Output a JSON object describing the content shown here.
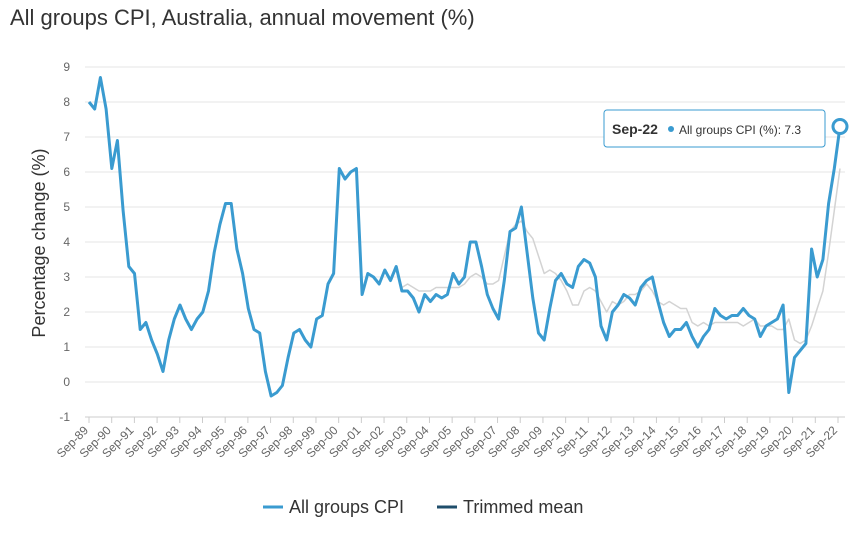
{
  "chart_data": {
    "type": "line",
    "title": "All groups CPI, Australia, annual movement (%)",
    "ylabel": "Percentage change (%)",
    "xlabel": "",
    "ylim": [
      -1,
      9
    ],
    "yticks": [
      -1,
      0,
      1,
      2,
      3,
      4,
      5,
      6,
      7,
      8,
      9
    ],
    "xticks": [
      "Sep-89",
      "Sep-90",
      "Sep-91",
      "Sep-92",
      "Sep-93",
      "Sep-94",
      "Sep-95",
      "Sep-96",
      "Sep-97",
      "Sep-98",
      "Sep-99",
      "Sep-00",
      "Sep-01",
      "Sep-02",
      "Sep-03",
      "Sep-04",
      "Sep-05",
      "Sep-06",
      "Sep-07",
      "Sep-08",
      "Sep-09",
      "Sep-10",
      "Sep-11",
      "Sep-12",
      "Sep-13",
      "Sep-14",
      "Sep-15",
      "Sep-16",
      "Sep-17",
      "Sep-18",
      "Sep-19",
      "Sep-20",
      "Sep-21",
      "Sep-22"
    ],
    "grid": true,
    "legend_position": "bottom",
    "series": [
      {
        "name": "All groups CPI",
        "color": "#3a9bd0",
        "values": [
          8.0,
          7.8,
          8.7,
          7.8,
          6.1,
          6.9,
          4.9,
          3.3,
          3.1,
          1.5,
          1.7,
          1.2,
          0.8,
          0.3,
          1.2,
          1.8,
          2.2,
          1.8,
          1.5,
          1.8,
          2.0,
          2.6,
          3.7,
          4.5,
          5.1,
          5.1,
          3.8,
          3.1,
          2.1,
          1.5,
          1.4,
          0.3,
          -0.4,
          -0.3,
          -0.1,
          0.7,
          1.4,
          1.5,
          1.2,
          1.0,
          1.8,
          1.9,
          2.8,
          3.1,
          6.1,
          5.8,
          6.0,
          6.1,
          2.5,
          3.1,
          3.0,
          2.8,
          3.2,
          2.9,
          3.3,
          2.6,
          2.6,
          2.4,
          2.0,
          2.5,
          2.3,
          2.5,
          2.4,
          2.5,
          3.1,
          2.8,
          3.0,
          4.0,
          4.0,
          3.3,
          2.5,
          2.1,
          1.8,
          2.9,
          4.3,
          4.4,
          5.0,
          3.7,
          2.4,
          1.4,
          1.2,
          2.1,
          2.9,
          3.1,
          2.8,
          2.7,
          3.3,
          3.5,
          3.4,
          3.0,
          1.6,
          1.2,
          2.0,
          2.2,
          2.5,
          2.4,
          2.2,
          2.7,
          2.9,
          3.0,
          2.3,
          1.7,
          1.3,
          1.5,
          1.5,
          1.7,
          1.3,
          1.0,
          1.3,
          1.5,
          2.1,
          1.9,
          1.8,
          1.9,
          1.9,
          2.1,
          1.9,
          1.8,
          1.3,
          1.6,
          1.7,
          1.8,
          2.2,
          -0.3,
          0.7,
          0.9,
          1.1,
          3.8,
          3.0,
          3.5,
          5.1,
          6.1,
          7.3
        ]
      },
      {
        "name": "Trimmed mean",
        "color": "#d3d3d3",
        "legend_color": "#1f4e6b",
        "values": [
          null,
          null,
          null,
          null,
          null,
          null,
          null,
          null,
          null,
          null,
          null,
          null,
          null,
          null,
          null,
          null,
          null,
          null,
          null,
          null,
          null,
          null,
          null,
          null,
          null,
          null,
          null,
          null,
          null,
          null,
          null,
          null,
          null,
          null,
          null,
          null,
          null,
          null,
          null,
          null,
          null,
          null,
          null,
          null,
          null,
          null,
          null,
          null,
          null,
          null,
          null,
          null,
          null,
          null,
          null,
          2.7,
          2.8,
          2.7,
          2.6,
          2.6,
          2.6,
          2.7,
          2.7,
          2.7,
          2.7,
          2.7,
          2.8,
          3.0,
          3.1,
          3.0,
          2.8,
          2.8,
          2.9,
          3.6,
          4.3,
          4.5,
          4.6,
          4.3,
          4.1,
          3.6,
          3.1,
          3.2,
          3.1,
          2.9,
          2.6,
          2.2,
          2.2,
          2.6,
          2.7,
          2.6,
          2.3,
          2.0,
          2.3,
          2.2,
          2.3,
          2.5,
          2.5,
          2.6,
          2.8,
          2.6,
          2.3,
          2.2,
          2.3,
          2.2,
          2.1,
          2.1,
          1.7,
          1.6,
          1.7,
          1.6,
          1.7,
          1.7,
          1.7,
          1.7,
          1.7,
          1.6,
          1.7,
          1.8,
          1.6,
          1.6,
          1.6,
          1.5,
          1.5,
          1.8,
          1.2,
          1.1,
          1.2,
          1.6,
          2.1,
          2.6,
          3.7,
          4.9,
          6.1
        ]
      }
    ],
    "tooltip": {
      "label": "Sep-22",
      "text": "All groups CPI (%): 7.3"
    }
  }
}
